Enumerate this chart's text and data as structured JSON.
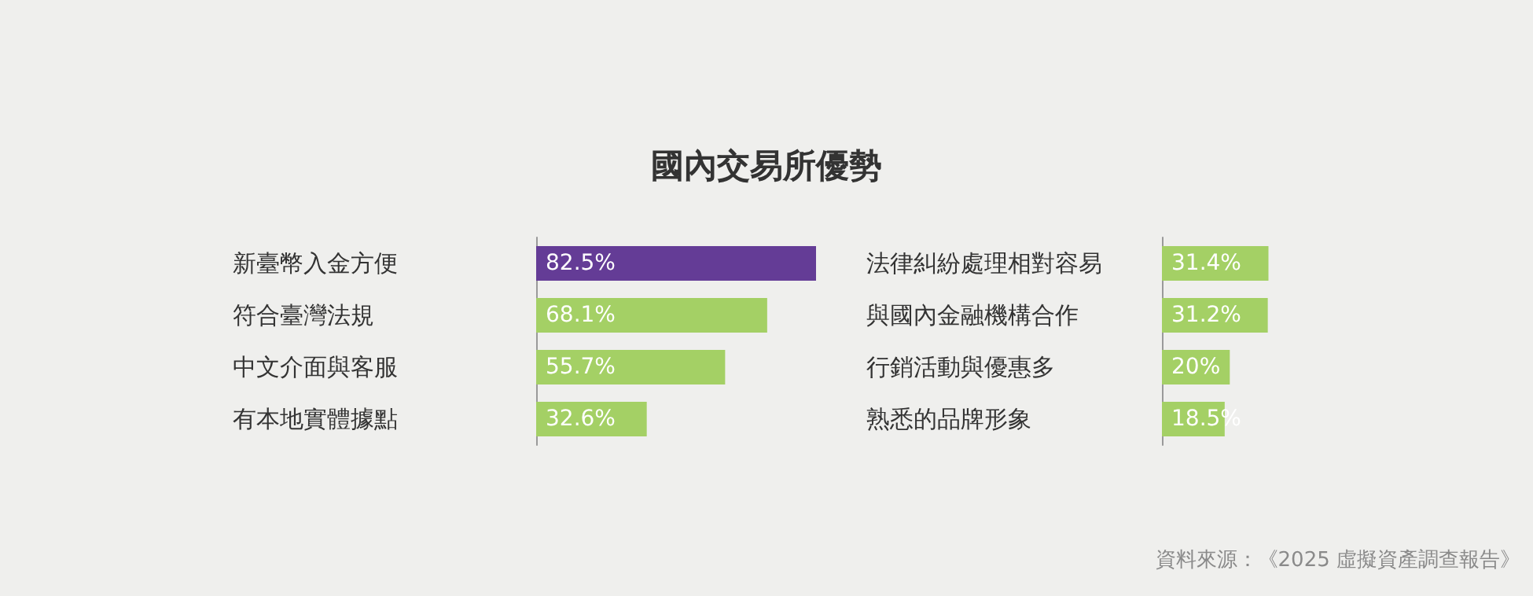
{
  "chart_data": [
    {
      "type": "bar",
      "orientation": "horizontal",
      "title": "國內交易所優勢",
      "categories": [
        "新臺幣入金方便",
        "符合臺灣法規",
        "中文介面與客服",
        "有本地實體據點"
      ],
      "values": [
        82.5,
        68.1,
        55.7,
        32.6
      ],
      "colors": [
        "#643c96",
        "#a4d065",
        "#a4d065",
        "#a4d065"
      ],
      "value_labels": [
        "82.5%",
        "68.1%",
        "55.7%",
        "32.6%"
      ],
      "tick_labels": "y"
    },
    {
      "type": "bar",
      "orientation": "horizontal",
      "categories": [
        "法律糾紛處理相對容易",
        "與國內金融機構合作",
        "行銷活動與優惠多",
        "熟悉的品牌形象"
      ],
      "values": [
        31.4,
        31.2,
        20,
        18.5
      ],
      "colors": [
        "#a4d065",
        "#a4d065",
        "#a4d065",
        "#a4d065"
      ],
      "value_labels": [
        "31.4%",
        "31.2%",
        "20%",
        "18.5%"
      ],
      "tick_labels": "y",
      "annotations": [
        "資料來源：《2025 虛擬資產調查報告》"
      ]
    }
  ]
}
